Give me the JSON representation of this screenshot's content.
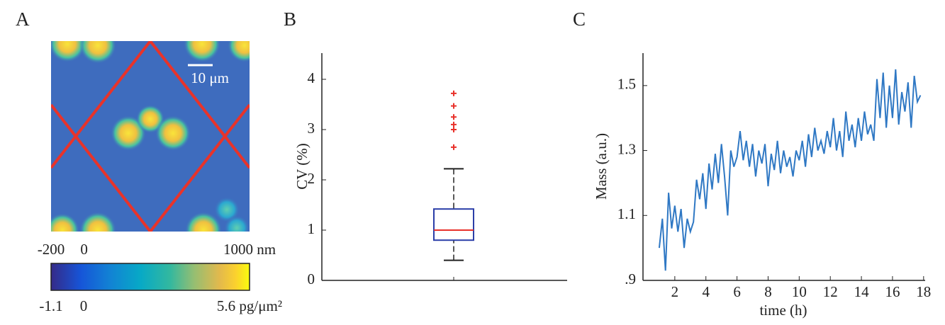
{
  "chart_data": [
    {
      "type": "heatmap",
      "title": "A",
      "scale_bar": "10 μm",
      "colorbar_top": {
        "lim": [
          -200,
          1000
        ],
        "ticks": [
          -200,
          0,
          {
            "value": 1000,
            "label": "1000 nm"
          }
        ]
      },
      "colorbar_bottom": {
        "lim": [
          -1.1,
          5.6
        ],
        "ticks": [
          -1.1,
          0,
          {
            "value": 5.6,
            "label": "5.6 pg/μm²"
          }
        ]
      }
    },
    {
      "type": "box",
      "title": "B",
      "ylabel": "CV (%)",
      "ylim": [
        0,
        4.5
      ],
      "yticks": [
        0,
        1,
        2,
        3,
        4
      ],
      "box": {
        "min": 0.4,
        "q1": 0.8,
        "median": 1.0,
        "q3": 1.42,
        "max": 2.22
      },
      "outliers": [
        2.65,
        3.0,
        3.1,
        3.25,
        3.47,
        3.72
      ],
      "box_color": "#2b3ea8",
      "median_color": "#e8312a",
      "outlier_color": "#e8312a"
    },
    {
      "type": "line",
      "title": "C",
      "xlabel": "time (h)",
      "ylabel": "Mass (a.u.)",
      "xlim": [
        0,
        18.1
      ],
      "xticks": [
        2,
        4,
        6,
        8,
        10,
        12,
        14,
        16,
        18
      ],
      "ylim": [
        0.9,
        1.6
      ],
      "yticks": [
        {
          "value": 0.9,
          "label": ".9"
        },
        1.1,
        1.3,
        1.5
      ],
      "x": [
        1.0,
        1.2,
        1.4,
        1.6,
        1.8,
        2.0,
        2.2,
        2.4,
        2.6,
        2.8,
        3.0,
        3.2,
        3.4,
        3.6,
        3.8,
        4.0,
        4.2,
        4.4,
        4.6,
        4.8,
        5.0,
        5.2,
        5.4,
        5.6,
        5.8,
        6.0,
        6.2,
        6.4,
        6.6,
        6.8,
        7.0,
        7.2,
        7.4,
        7.6,
        7.8,
        8.0,
        8.2,
        8.4,
        8.6,
        8.8,
        9.0,
        9.2,
        9.4,
        9.6,
        9.8,
        10.0,
        10.2,
        10.4,
        10.6,
        10.8,
        11.0,
        11.2,
        11.4,
        11.6,
        11.8,
        12.0,
        12.2,
        12.4,
        12.6,
        12.8,
        13.0,
        13.2,
        13.4,
        13.6,
        13.8,
        14.0,
        14.2,
        14.4,
        14.6,
        14.8,
        15.0,
        15.2,
        15.4,
        15.6,
        15.8,
        16.0,
        16.2,
        16.4,
        16.6,
        16.8,
        17.0,
        17.2,
        17.4,
        17.6,
        17.8
      ],
      "series": [
        {
          "color": "#2f78c4",
          "values": [
            1.0,
            1.09,
            0.93,
            1.17,
            1.06,
            1.13,
            1.05,
            1.12,
            1.0,
            1.09,
            1.05,
            1.08,
            1.21,
            1.15,
            1.23,
            1.12,
            1.26,
            1.18,
            1.29,
            1.2,
            1.32,
            1.22,
            1.1,
            1.3,
            1.25,
            1.28,
            1.36,
            1.27,
            1.33,
            1.25,
            1.32,
            1.22,
            1.3,
            1.26,
            1.32,
            1.19,
            1.29,
            1.24,
            1.33,
            1.23,
            1.3,
            1.25,
            1.28,
            1.22,
            1.3,
            1.27,
            1.33,
            1.25,
            1.35,
            1.28,
            1.37,
            1.3,
            1.33,
            1.29,
            1.36,
            1.31,
            1.4,
            1.3,
            1.36,
            1.28,
            1.42,
            1.33,
            1.38,
            1.31,
            1.4,
            1.33,
            1.42,
            1.35,
            1.38,
            1.33,
            1.52,
            1.4,
            1.54,
            1.37,
            1.5,
            1.4,
            1.55,
            1.38,
            1.48,
            1.42,
            1.51,
            1.37,
            1.53,
            1.45,
            1.47
          ]
        }
      ]
    }
  ]
}
